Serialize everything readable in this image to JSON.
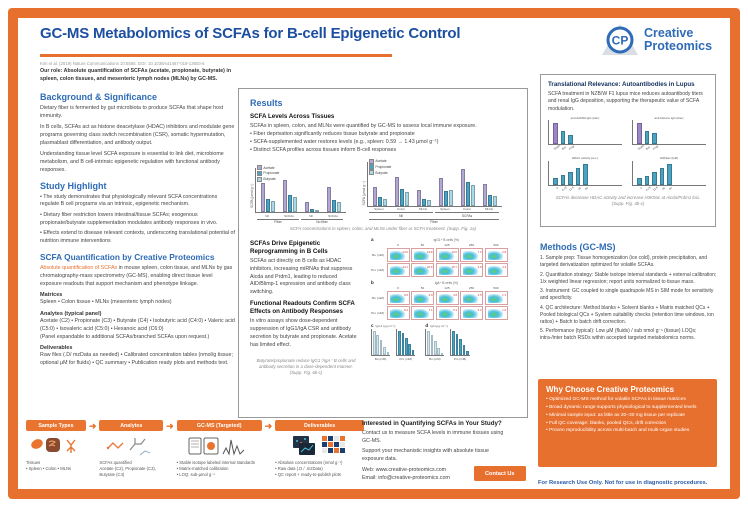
{
  "colors": {
    "orange": "#E8702E",
    "title_blue": "#1C4FA0",
    "heading_blue": "#2E6CB5",
    "logo_blue": "#2F6BB7",
    "body_gray": "#444444",
    "acetate": "#B3A7D6",
    "propionate": "#4BA3C3",
    "butyrate": "#A9D9E6",
    "lupus_purple": "#9C86C8",
    "flow_number_red": "#CC3333"
  },
  "header": {
    "title": "GC-MS Metabolomics of SCFAs for B-cell Epigenetic Control",
    "citation": "Kim et al. (2019) Nature Communications 10:5555. DOI: 10.1038/s41467-019-13603-6",
    "our_role": "Our role: Absolute quantification of SCFAs (acetate, propionate, butyrate) in spleen, colon tissues, and mesenteric lymph nodes (MLNs) by GC-MS.",
    "logo": {
      "initials": "CP",
      "line1": "Creative",
      "line2": "Proteomics"
    }
  },
  "left": {
    "background": {
      "heading": "Background & Significance",
      "paragraphs": [
        "Dietary fiber is fermented by gut microbiota to produce SCFAs that shape host immunity.",
        "In B cells, SCFAs act as histone deacetylase (HDAC) inhibitors and modulate gene programs governing class switch recombination (CSR), somatic hypermutation, plasmablast differentiation, and antibody output.",
        "Understanding tissue level SCFA exposure is essential to link diet, microbiome metabolism, and B cell-intrinsic epigenetic regulation with functional antibody responses."
      ]
    },
    "highlight": {
      "heading": "Study Highlight",
      "bullets": [
        "•  The study demonstrates that physiologically relevant SCFA concentrations regulate B cell programs via an intrinsic, epigenetic mechanism.",
        "•  Dietary fiber restriction lowers intestinal/tissue SCFAs; exogenous propionate/butyrate supplementation modulates antibody responses in vivo.",
        "•  Effects extend to disease relevant contexts, underscoring translational potential of nutrition immune interventions"
      ]
    },
    "quant": {
      "heading": "SCFA Quantification by Creative Proteomics",
      "lead_highlight": "Absolute quantification of SCFAs",
      "lead_rest": " in mouse spleen, colon tissue, and MLNs by gas chromatography-mass spectrometry (GC-MS), enabling direct tissue level exposure readouts that support mechanism and phenotype linkage.",
      "matrices_label": "Matrices",
      "matrices_text": "Spleen • Colon tissue • MLNs (mesenteric lymph nodes)",
      "analytes_label": "Analytes (typical panel)",
      "analytes_text": "Acetate (C2) • Propionate (C3) • Butyrate (C4) • Isobutyric acid (C4:0) • Valeric acid (C5:0) • Isovaleric acid (C5:0) • Hexanoic acid (C6:0)",
      "analytes_note": "(Panel expandable to additional SCFAs/branched SCFAs upon request.)",
      "deliverables_label": "Deliverables",
      "deliverables_text": "Raw files (.D/ mzData as needed) • Calibrated concentration tables (nmol/g tissue; optional µM for fluids) • QC summary • Publication ready plots and methods text."
    }
  },
  "workflow": {
    "arrow": "➜",
    "stages": [
      {
        "label": "Sample Types",
        "lines": [
          "Tissues",
          "• Spleen • Colon • MLNs"
        ]
      },
      {
        "label": "Analytes",
        "lines": [
          "SCFAs quantified",
          "Acetate (C2), Propionate (C3), Butyrate (C4)"
        ]
      },
      {
        "label": "GC-MS (Targeted)",
        "lines": [
          "• Stable isotope labeled internal standards",
          "• Matrix-matched calibration",
          "• LOQ: sub-µmol g⁻¹"
        ]
      },
      {
        "label": "Deliverables",
        "lines": [
          "• Absolute concentrations (nmol g⁻¹)",
          "• Raw data (.D / .mzData)",
          "• QC report + ready-to-publish plots"
        ]
      }
    ]
  },
  "results": {
    "heading": "Results",
    "s1": {
      "subheading": "SCFA Levels Across Tissues",
      "intro": "SCFAs in spleen, colon, and MLNs were quantified by GC-MS to assess local immune exposure.",
      "bullets": [
        "• Fiber deprivation significantly reduces tissue butyrate and propionate",
        "• SCFA-supplemented water restores levels (e.g., spleen: 0.59 → 1.43 µmol g⁻¹)",
        "• Distinct SCFA profiles across tissues inform B-cell responses"
      ],
      "caption": "SCFA concentrations in spleen, colon, and MLNs under fiber or SCFA treatment. (Supp. Fig. 1a)"
    },
    "s2": {
      "subheading": "SCFAs Drive Epigenetic Reprogramming in B Cells",
      "body": "SCFAs act directly on B cells as HDAC inhibitors, increasing miRNAs that suppress Aicda and Prdm1, leading to reduced AID/Blimp-1 expression and antibody class switching."
    },
    "s3": {
      "subheading": "Functional Readouts Confirm SCFA Effects on Antibody Responses",
      "body": "In vitro assays show dose-dependent suppression of IgG1/IgA CSR and antibody secretion by butyrate and propionate. Acetate has limited effect.",
      "caption": "Butyrate/propionate reduce IgG1⁺/IgA⁺ B cells and antibody secretion in a dose-dependent manner. (Supp. Fig. 6b-c)"
    }
  },
  "translational": {
    "heading": "Translational Relevance: Autoantibodies in Lupus",
    "body": "SCFA treatment in NZB/W F1 lupus mice reduces autoantibody titers and renal IgG deposition, supporting the therapeutic value of SCFA modulation.",
    "caption": "SCFAs decrease HDAC activity and increase H3K9ac at Aicda/Prdm1 loci. (Supp. Fig. 4b-c)"
  },
  "methods": {
    "heading": "Methods (GC-MS)",
    "items": [
      "1. Sample prep: Tissue homogenization (ice cold), protein precipitation, and targeted derivatization optimized for volatile SCFAs.",
      "2. Quantitation strategy: Stable isotope internal standards + external calibration; 1/x weighted linear regression; report units normalized to tissue mass.",
      "3. Instrument: GC coupled to single quadrupole MS in SIM mode for sensitivity and specificity.",
      "4. QC architecture: Method blanks + Solvent blanks + Matrix matched QCs + Pooled biological QCs + System suitability checks (retention time windows, ion ratios) + Batch to batch drift correction.",
      "5. Performance (typical): Low µM (fluids) / sub nmol g⁻¹ (tissue) LOQs; intra-/inter batch RSDs within accepted targeted metabolomics norms."
    ]
  },
  "why": {
    "heading": "Why Choose Creative Proteomics",
    "bullets": [
      "• Optimized GC-MS method for volatile SCFAs in tissue matrices",
      "• Broad dynamic range supports physiological to supplemented levels",
      "• Minimal sample input: as little as 20–30 mg tissue per replicate",
      "• Full QC coverage: blanks, pooled QCs, drift correction",
      "• Proven reproducibility across multi-batch and multi-organ studies"
    ]
  },
  "contact": {
    "heading": "Interested in Quantifying SCFAs in Your Study?",
    "p1": "Contact us to measure SCFA levels in immune tissues using GC-MS.",
    "p2": "Support your mechanistic insights with absolute tissue exposure data.",
    "web": "Web: www.creative-proteomics.com",
    "email": "Email: info@creative-proteomics.com",
    "button": "Contact Us"
  },
  "footer": "For Research Use Only. Not for use in diagnostic procedures.",
  "chart_data": {
    "tissue_levels": {
      "type": "bar",
      "legend": [
        "Acetate",
        "Propionate",
        "Butyrate"
      ],
      "colors": [
        "#B3A7D6",
        "#4BA3C3",
        "#A9D9E6"
      ],
      "panels": [
        {
          "ylabel": "SCFA (µmol g⁻¹)",
          "ylim": [
            0,
            8
          ],
          "categories": [
            "Nil",
            "SCFAs",
            "Nil",
            "SCFAs"
          ],
          "group_labels": [
            {
              "label": "Fiber",
              "span": 2
            },
            {
              "label": "No fiber",
              "span": 2
            }
          ],
          "series": [
            {
              "name": "Acetate",
              "values": [
                5.2,
                5.9,
                1.8,
                4.6
              ]
            },
            {
              "name": "Propionate",
              "values": [
                2.3,
                3.1,
                0.5,
                2.2
              ]
            },
            {
              "name": "Butyrate",
              "values": [
                2.0,
                2.8,
                0.4,
                1.9
              ]
            }
          ]
        },
        {
          "ylabel": "SCFA (µmol g⁻¹)",
          "ylim": [
            0,
            4
          ],
          "categories": [
            "Spleen",
            "Colon",
            "MLNs",
            "Spleen",
            "Colon",
            "MLNs"
          ],
          "group_labels": [
            {
              "label": "Nil",
              "span": 3
            },
            {
              "label": "SCFAs",
              "span": 3
            }
          ],
          "super_label": "Fiber",
          "series": [
            {
              "name": "Acetate",
              "values": [
                1.7,
                2.6,
                1.4,
                2.5,
                3.3,
                2.0
              ]
            },
            {
              "name": "Propionate",
              "values": [
                0.8,
                1.5,
                0.6,
                1.3,
                2.1,
                1.0
              ]
            },
            {
              "name": "Butyrate",
              "values": [
                0.59,
                1.2,
                0.5,
                1.43,
                1.9,
                0.9
              ]
            }
          ]
        }
      ]
    },
    "csr_flow": {
      "type": "scatter-grid",
      "doses": [
        "0",
        "50",
        "125",
        "250",
        "500"
      ],
      "rows": [
        "Bu (mM)",
        "Pro (mM)"
      ],
      "grids": [
        {
          "panel": "a",
          "title": "IgG1⁺ B cells (%)",
          "percents": [
            [
              24.6,
              19.8,
              13.5,
              7.2,
              2.8
            ],
            [
              24.1,
              20.9,
              15.7,
              9.8,
              4.3
            ]
          ]
        },
        {
          "panel": "b",
          "title": "IgA⁺ B cells (%)",
          "percents": [
            [
              8.6,
              6.9,
              4.8,
              2.5,
              1.1
            ],
            [
              8.2,
              7.1,
              5.3,
              3.2,
              1.6
            ]
          ]
        }
      ]
    },
    "secretion_bars": {
      "type": "bar",
      "dose_ticks": [
        "0",
        "50",
        "125",
        "250",
        "500"
      ],
      "panels": [
        {
          "panel": "c",
          "title": "IgG1 (µg ml⁻¹)",
          "clusters": [
            {
              "label": "Bu (mM)",
              "color": "#CFE9F2",
              "values": [
                100,
                86,
                62,
                35,
                14
              ]
            },
            {
              "label": "Pro (mM)",
              "color": "#4BA3C3",
              "values": [
                100,
                91,
                72,
                46,
                21
              ]
            }
          ]
        },
        {
          "panel": "d",
          "title": "IgA (µg ml⁻¹)",
          "clusters": [
            {
              "label": "Bu (mM)",
              "color": "#CFE9F2",
              "values": [
                100,
                83,
                58,
                30,
                11
              ]
            },
            {
              "label": "Pro (mM)",
              "color": "#4BA3C3",
              "values": [
                100,
                88,
                68,
                42,
                18
              ]
            }
          ]
        }
      ]
    },
    "lupus_panels": {
      "type": "bar",
      "panels": [
        {
          "title": "anti-dsDNA IgG (titer)",
          "categories": [
            "Water",
            "But.",
            "Prop."
          ],
          "values": [
            9.0,
            5.8,
            4.2
          ],
          "bar_colors": [
            "#9C86C8",
            "#4BA3C3",
            "#4BA3C3"
          ]
        },
        {
          "title": "anti-histone IgG (titer)",
          "categories": [
            "Water",
            "But.",
            "Prop."
          ],
          "values": [
            8.4,
            5.4,
            4.6
          ],
          "bar_colors": [
            "#9C86C8",
            "#4BA3C3",
            "#4BA3C3"
          ]
        },
        {
          "title": "HDAC activity (a.u.)",
          "categories": [
            "0",
            "6.25",
            "12.5",
            "25",
            "50"
          ],
          "values": [
            1.2,
            1.7,
            2.2,
            2.9,
            3.6
          ],
          "bar_colors": [
            "#4BA3C3",
            "#4BA3C3",
            "#4BA3C3",
            "#4BA3C3",
            "#4BA3C3"
          ]
        },
        {
          "title": "H3K9ac (fold)",
          "categories": [
            "0",
            "6.25",
            "12.5",
            "25",
            "50"
          ],
          "values": [
            1.0,
            1.4,
            1.9,
            2.5,
            3.2
          ],
          "bar_colors": [
            "#4BA3C3",
            "#4BA3C3",
            "#4BA3C3",
            "#4BA3C3",
            "#4BA3C3"
          ]
        }
      ]
    }
  }
}
